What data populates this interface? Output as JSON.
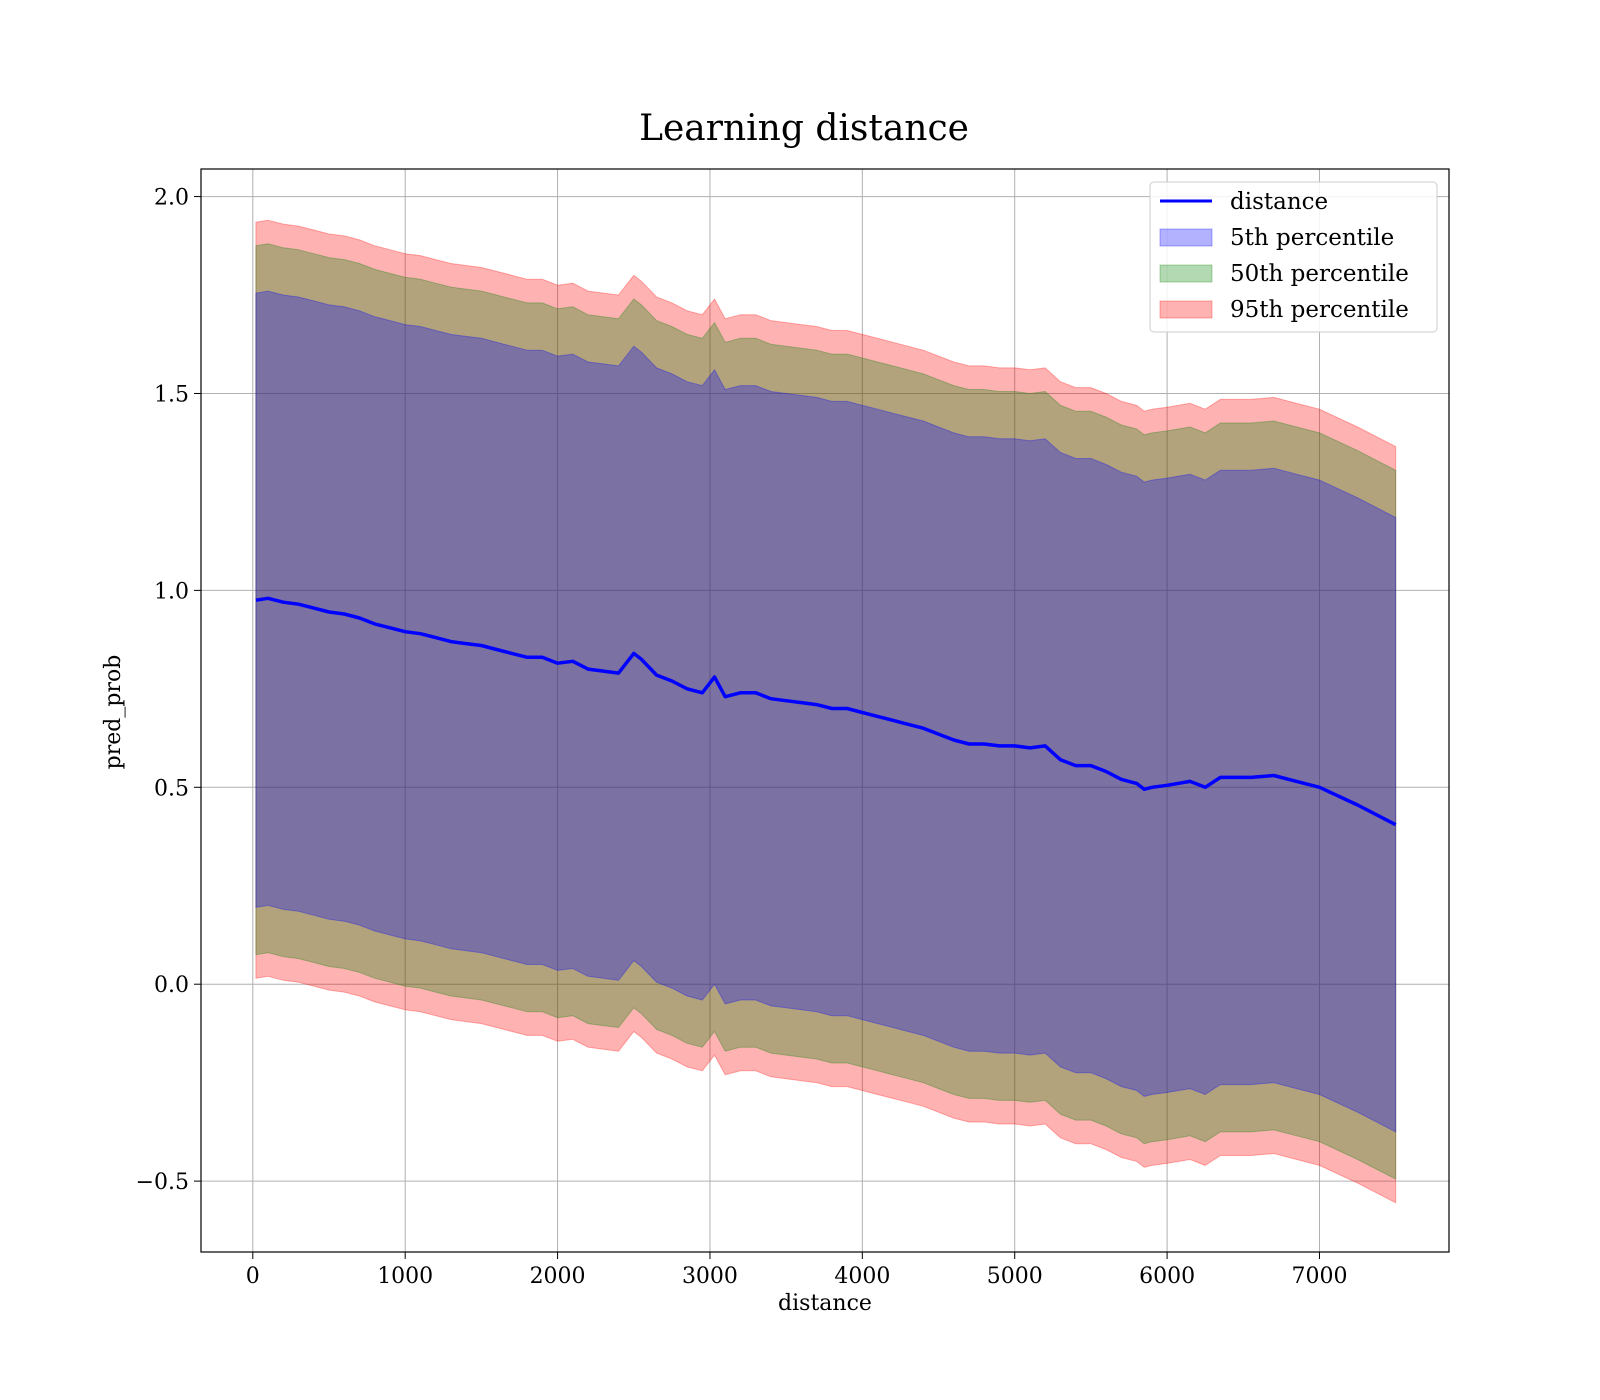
{
  "chart_data": {
    "type": "area",
    "title": "Learning distance",
    "xlabel": "distance",
    "ylabel": "pred_prob",
    "xlim": [
      -340,
      7850
    ],
    "ylim": [
      -0.68,
      2.07
    ],
    "xticks": [
      0,
      1000,
      2000,
      3000,
      4000,
      5000,
      6000,
      7000
    ],
    "xtick_labels": [
      "0",
      "1000",
      "2000",
      "3000",
      "4000",
      "5000",
      "6000",
      "7000"
    ],
    "yticks": [
      -0.5,
      0.0,
      0.5,
      1.0,
      1.5,
      2.0
    ],
    "ytick_labels": [
      "−0.5",
      "0.0",
      "0.5",
      "1.0",
      "1.5",
      "2.0"
    ],
    "grid": true,
    "legend_position": "top-right",
    "x": [
      20,
      100,
      200,
      300,
      400,
      500,
      600,
      700,
      800,
      900,
      1000,
      1100,
      1200,
      1300,
      1400,
      1500,
      1600,
      1700,
      1800,
      1900,
      2000,
      2100,
      2200,
      2300,
      2400,
      2500,
      2550,
      2650,
      2750,
      2850,
      2950,
      3030,
      3100,
      3200,
      3300,
      3400,
      3500,
      3600,
      3700,
      3800,
      3900,
      4000,
      4100,
      4200,
      4300,
      4400,
      4500,
      4600,
      4700,
      4800,
      4900,
      5000,
      5100,
      5200,
      5300,
      5400,
      5500,
      5600,
      5700,
      5800,
      5850,
      5900,
      6000,
      6150,
      6250,
      6350,
      6450,
      6550,
      6700,
      6850,
      7000,
      7250,
      7500
    ],
    "series": [
      {
        "name": "distance",
        "kind": "line",
        "color": "#0000ff",
        "values": [
          0.975,
          0.98,
          0.97,
          0.965,
          0.955,
          0.945,
          0.94,
          0.93,
          0.915,
          0.905,
          0.895,
          0.89,
          0.88,
          0.87,
          0.865,
          0.86,
          0.85,
          0.84,
          0.83,
          0.83,
          0.815,
          0.82,
          0.8,
          0.795,
          0.79,
          0.84,
          0.825,
          0.785,
          0.77,
          0.75,
          0.74,
          0.78,
          0.73,
          0.74,
          0.74,
          0.725,
          0.72,
          0.715,
          0.71,
          0.7,
          0.7,
          0.69,
          0.68,
          0.67,
          0.66,
          0.65,
          0.635,
          0.62,
          0.61,
          0.61,
          0.605,
          0.605,
          0.6,
          0.605,
          0.57,
          0.555,
          0.555,
          0.54,
          0.52,
          0.51,
          0.495,
          0.5,
          0.505,
          0.515,
          0.5,
          0.525,
          0.525,
          0.525,
          0.53,
          0.515,
          0.5,
          0.455,
          0.405
        ]
      },
      {
        "name": "5th percentile",
        "kind": "band",
        "color": "#0000ff",
        "offset": 0.78
      },
      {
        "name": "50th percentile",
        "kind": "band",
        "color": "#008000",
        "offset": 0.9
      },
      {
        "name": "95th percentile",
        "kind": "band",
        "color": "#ff0000",
        "offset": 0.96
      }
    ]
  }
}
